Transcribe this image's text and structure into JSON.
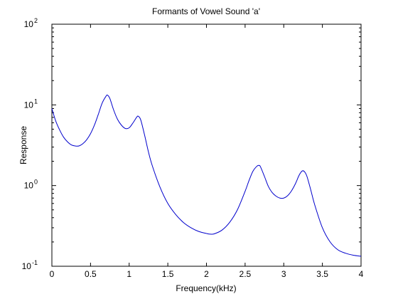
{
  "chart_data": {
    "type": "line",
    "title": "Formants of Vowel Sound 'a'",
    "xlabel": "Frequency(kHz)",
    "ylabel": "Response",
    "xlim": [
      0,
      4
    ],
    "ylim": [
      0.1,
      100
    ],
    "yscale": "log",
    "grid": false,
    "x_ticks": [
      0,
      0.5,
      1,
      1.5,
      2,
      2.5,
      3,
      3.5,
      4
    ],
    "x_tick_labels": [
      "0",
      "0.5",
      "1",
      "1.5",
      "2",
      "2.5",
      "3",
      "3.5",
      "4"
    ],
    "y_ticks": [
      {
        "value": 100,
        "base": "10",
        "exp": "2"
      },
      {
        "value": 10,
        "base": "10",
        "exp": "1"
      },
      {
        "value": 1,
        "base": "10",
        "exp": "0"
      },
      {
        "value": 0.1,
        "base": "10",
        "exp": "-1"
      }
    ],
    "series": [
      {
        "color": "#0000cc",
        "x": [
          0,
          0.05,
          0.1,
          0.15,
          0.2,
          0.25,
          0.3,
          0.35,
          0.4,
          0.45,
          0.5,
          0.55,
          0.6,
          0.65,
          0.7,
          0.72,
          0.75,
          0.8,
          0.85,
          0.9,
          0.95,
          1.0,
          1.05,
          1.1,
          1.12,
          1.15,
          1.2,
          1.25,
          1.3,
          1.4,
          1.5,
          1.6,
          1.7,
          1.8,
          1.9,
          2.0,
          2.05,
          2.1,
          2.2,
          2.3,
          2.4,
          2.5,
          2.55,
          2.6,
          2.65,
          2.68,
          2.7,
          2.75,
          2.8,
          2.85,
          2.9,
          2.95,
          3.0,
          3.05,
          3.1,
          3.15,
          3.2,
          3.24,
          3.27,
          3.3,
          3.35,
          3.4,
          3.5,
          3.6,
          3.7,
          3.8,
          3.9,
          4.0
        ],
        "y": [
          9.0,
          6.3,
          4.9,
          4.0,
          3.5,
          3.2,
          3.1,
          3.1,
          3.3,
          3.7,
          4.4,
          5.6,
          7.6,
          10.5,
          12.8,
          13.2,
          12.0,
          8.6,
          6.6,
          5.6,
          5.1,
          5.2,
          6.0,
          7.1,
          7.2,
          6.5,
          4.2,
          2.6,
          1.75,
          0.95,
          0.6,
          0.44,
          0.35,
          0.3,
          0.27,
          0.255,
          0.25,
          0.252,
          0.28,
          0.35,
          0.5,
          0.85,
          1.15,
          1.5,
          1.73,
          1.78,
          1.7,
          1.3,
          0.98,
          0.82,
          0.74,
          0.7,
          0.7,
          0.75,
          0.86,
          1.05,
          1.35,
          1.52,
          1.48,
          1.3,
          0.88,
          0.58,
          0.3,
          0.2,
          0.16,
          0.145,
          0.137,
          0.133
        ]
      }
    ]
  }
}
